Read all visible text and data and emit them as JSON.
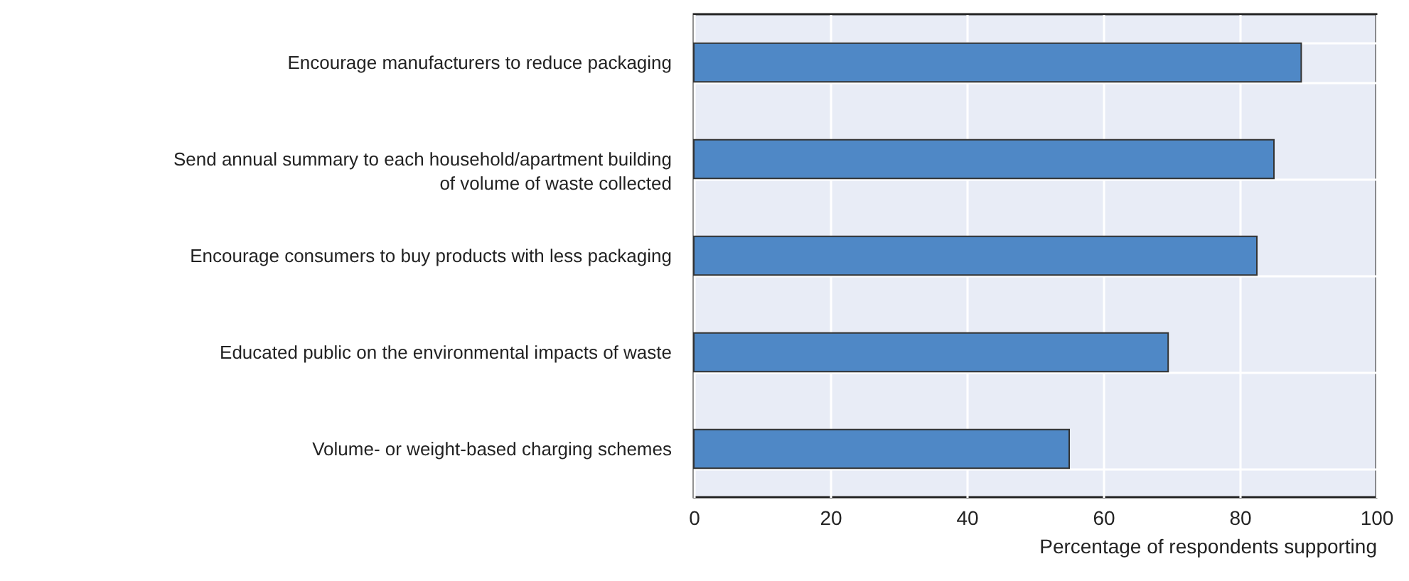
{
  "chart_data": {
    "type": "bar",
    "orientation": "horizontal",
    "xlabel": "Percentage of respondents supporting",
    "categories": [
      "Encourage manufacturers to reduce packaging",
      "Send annual summary to each household/apartment building of volume of waste collected",
      "Encourage consumers to buy products with less packaging",
      "Educated public on the environmental impacts of waste",
      "Volume- or weight-based charging schemes"
    ],
    "values": [
      89,
      85,
      82.5,
      69.5,
      55
    ],
    "color": "#4f88c6",
    "xlim": [
      0,
      100
    ],
    "xticks": [
      0,
      20,
      40,
      60,
      80,
      100
    ],
    "grid": true
  }
}
